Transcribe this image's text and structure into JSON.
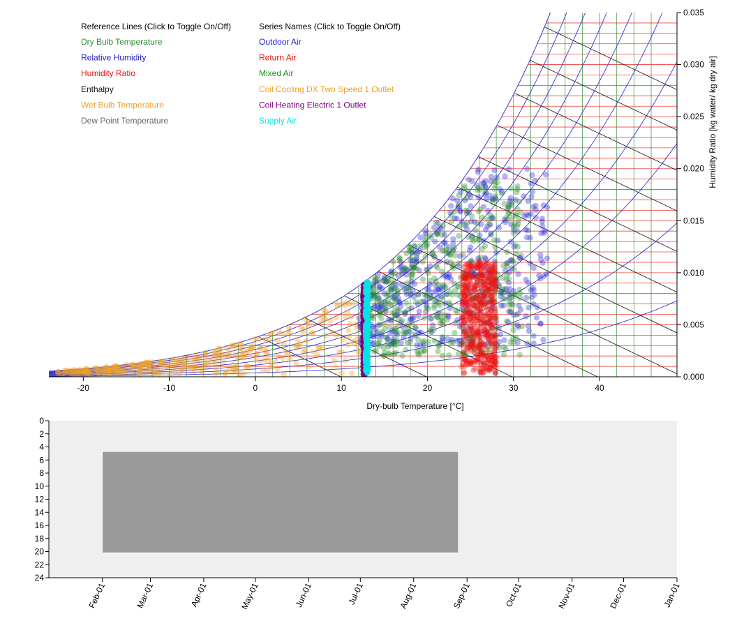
{
  "legend": {
    "reference_header": "Reference Lines (Click to Toggle On/Off)",
    "series_header": "Series Names (Click to Toggle On/Off)",
    "reference_lines": [
      {
        "label": "Dry Bulb Temperature",
        "color": "#2e8b2e"
      },
      {
        "label": "Relative Humidity",
        "color": "#2222cc"
      },
      {
        "label": "Humidity Ratio",
        "color": "#ee1111"
      },
      {
        "label": "Enthalpy",
        "color": "#111111"
      },
      {
        "label": "Wet Bulb Temperature",
        "color": "#f0a020"
      },
      {
        "label": "Dew Point Temperature",
        "color": "#666666"
      }
    ],
    "series": [
      {
        "label": "Outdoor Air",
        "color": "#2222dd"
      },
      {
        "label": "Return Air",
        "color": "#ee1111"
      },
      {
        "label": "Mixed Air",
        "color": "#228b22"
      },
      {
        "label": "Coil Cooling DX Two Speed 1 Outlet",
        "color": "#f0a020"
      },
      {
        "label": "Coil Heating Electric 1 Outlet",
        "color": "#800080"
      },
      {
        "label": "Supply Air",
        "color": "#00e5e5"
      }
    ]
  },
  "chart_data": [
    {
      "type": "scatter",
      "xlabel": "Dry-bulb Temperature [°C]",
      "ylabel": "Humidity Ratio [kg water/ kg dry air]",
      "xlim": [
        -24,
        49
      ],
      "ylim": [
        0,
        0.035
      ],
      "x_ticks": [
        -20,
        -10,
        0,
        10,
        20,
        30,
        40
      ],
      "x_tick_labels": [
        "-20",
        "-10",
        "0",
        "10",
        "20",
        "30",
        "40"
      ],
      "y_ticks": [
        0,
        0.005,
        0.01,
        0.015,
        0.02,
        0.025,
        0.03,
        0.035
      ],
      "y_tick_labels": [
        "0.000",
        "0.005",
        "0.010",
        "0.015",
        "0.020",
        "0.025",
        "0.030",
        "0.035"
      ],
      "y_axis_side": "right",
      "reference_grid": {
        "dry_bulb_lines_c": [
          -14,
          -12,
          -10,
          -8,
          -6,
          -4,
          -2,
          0,
          2,
          4,
          6,
          8,
          10,
          12,
          14,
          16,
          18,
          20,
          22,
          24,
          26,
          28,
          30,
          32,
          34,
          36,
          38,
          40,
          42,
          44,
          46
        ],
        "humidity_ratio_lines": [
          0.001,
          0.002,
          0.003,
          0.004,
          0.005,
          0.006,
          0.007,
          0.008,
          0.009,
          0.01,
          0.011,
          0.012,
          0.013,
          0.014,
          0.015,
          0.016,
          0.017,
          0.018,
          0.019,
          0.02,
          0.021,
          0.022,
          0.023,
          0.024,
          0.025,
          0.026,
          0.027,
          0.028,
          0.029,
          0.03,
          0.031,
          0.032,
          0.033,
          0.034
        ],
        "relative_humidity_lines": [
          0.1,
          0.2,
          0.3,
          0.4,
          0.5,
          0.6,
          0.7,
          0.8,
          0.9,
          1.0
        ],
        "enthalpy_lines_kj_kg": [
          10,
          20,
          30,
          40,
          50,
          60,
          70,
          80,
          90,
          100,
          110,
          120
        ]
      },
      "series": [
        {
          "name": "Outdoor Air",
          "x_range": [
            12,
            34
          ],
          "y_range": [
            0.003,
            0.02
          ],
          "approx_points": 450
        },
        {
          "name": "Return Air",
          "x_range": [
            24,
            28
          ],
          "y_range": [
            0.0003,
            0.011
          ],
          "approx_points": 500
        },
        {
          "name": "Mixed Air",
          "x_range": [
            13,
            31
          ],
          "y_range": [
            0.002,
            0.019
          ],
          "approx_points": 450
        },
        {
          "name": "Coil Cooling DX Two Speed 1 Outlet",
          "x_range": [
            -23,
            12.8
          ],
          "y_range": [
            0.0002,
            0.0095
          ],
          "approx_points": 350
        },
        {
          "name": "Coil Heating Electric 1 Outlet",
          "x_range": [
            12.5,
            12.9
          ],
          "y_range": [
            0.0002,
            0.0098
          ],
          "approx_points": 200
        },
        {
          "name": "Supply Air",
          "x_range": [
            12.8,
            13.1
          ],
          "y_range": [
            0.0003,
            0.0098
          ],
          "approx_points": 200
        }
      ]
    },
    {
      "type": "heatmap",
      "y_ticks": [
        0,
        2,
        4,
        6,
        8,
        10,
        12,
        14,
        16,
        18,
        20,
        22,
        24
      ],
      "y_tick_labels": [
        "0",
        "2",
        "4",
        "6",
        "8",
        "10",
        "12",
        "14",
        "16",
        "18",
        "20",
        "22",
        "24"
      ],
      "ylim": [
        0,
        24
      ],
      "x_tick_labels": [
        "Feb-01",
        "Mar-01",
        "Apr-01",
        "May-01",
        "Jun-01",
        "Jul-01",
        "Aug-01",
        "Sep-01",
        "Oct-01",
        "Nov-01",
        "Dec-01",
        "Jan-01"
      ],
      "xlim": [
        "Jan-01",
        "Dec-31"
      ],
      "selection": {
        "start_date": "Feb-01",
        "end_date": "Aug-27",
        "start_hour": 4.7,
        "end_hour": 20.2
      },
      "background_color": "#efefef",
      "selection_color": "#9a9a9a"
    }
  ]
}
